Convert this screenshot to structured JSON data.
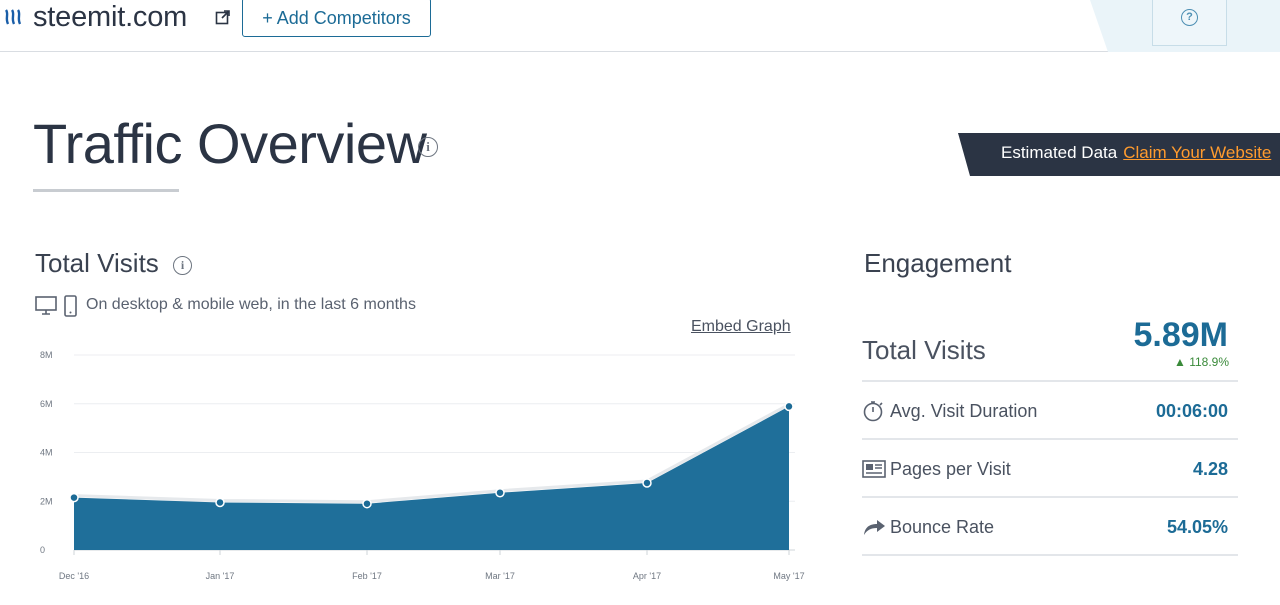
{
  "header": {
    "site_name": "steemit.com",
    "add_competitors_label": "+ Add Competitors",
    "help_symbol": "?"
  },
  "title": {
    "text": "Traffic Overview",
    "info_symbol": "i"
  },
  "banner": {
    "label": "Estimated Data",
    "link_text": "Claim Your Website"
  },
  "total_visits": {
    "title": "Total Visits",
    "info_symbol": "i",
    "subtitle": "On desktop & mobile web, in the last 6 months",
    "embed_label": "Embed Graph"
  },
  "chart_data": {
    "type": "area",
    "categories": [
      "Dec '16",
      "Jan '17",
      "Feb '17",
      "Mar '17",
      "Apr '17",
      "May '17"
    ],
    "values": [
      2.15,
      1.95,
      1.9,
      2.35,
      2.75,
      5.89
    ],
    "y_ticks": [
      "0",
      "2M",
      "4M",
      "6M",
      "8M"
    ],
    "ylim": [
      0,
      8
    ],
    "grid": true,
    "series_color": "#1f6f9a"
  },
  "engagement": {
    "title": "Engagement",
    "total_visits_label": "Total Visits",
    "total_visits_value": "5.89M",
    "total_visits_change": "118.9%",
    "rows": [
      {
        "label": "Avg. Visit Duration",
        "value": "00:06:00",
        "icon": "stopwatch-icon"
      },
      {
        "label": "Pages per Visit",
        "value": "4.28",
        "icon": "pages-icon"
      },
      {
        "label": "Bounce Rate",
        "value": "54.05%",
        "icon": "bounce-arrow-icon"
      }
    ]
  },
  "colors": {
    "accent": "#1c6b96",
    "banner_bg": "#2b3444",
    "banner_link": "#ff9b2e",
    "positive": "#3a8a3a"
  }
}
